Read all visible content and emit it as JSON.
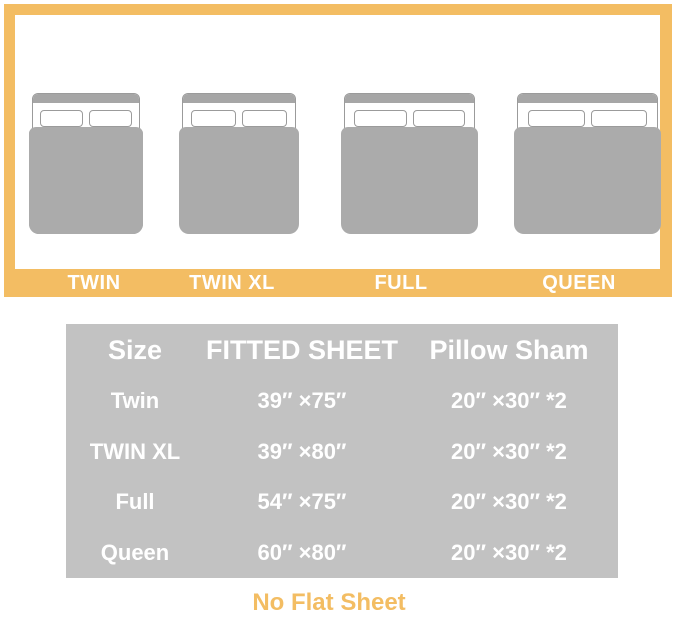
{
  "colors": {
    "accent_orange": "#F3BD63",
    "table_background_gray": "#C2C2C2",
    "mattress_gray": "#ABABAB",
    "headboard_gray": "#A6A6A6",
    "outline_gray": "#9B9B9B",
    "text_white": "#FFFFFF"
  },
  "beds": [
    {
      "label": "TWIN"
    },
    {
      "label": "TWIN XL"
    },
    {
      "label": "FULL"
    },
    {
      "label": "QUEEN"
    }
  ],
  "table": {
    "headers": [
      "Size",
      "FITTED SHEET",
      "Pillow Sham"
    ],
    "rows": [
      {
        "size": "Twin",
        "fitted_sheet": "39″ ×75″",
        "pillow_sham": "20″ ×30″ *2"
      },
      {
        "size": "TWIN XL",
        "fitted_sheet": "39″ ×80″",
        "pillow_sham": "20″ ×30″ *2"
      },
      {
        "size": "Full",
        "fitted_sheet": "54″ ×75″",
        "pillow_sham": "20″ ×30″ *2"
      },
      {
        "size": "Queen",
        "fitted_sheet": "60″ ×80″",
        "pillow_sham": "20″ ×30″ *2"
      }
    ]
  },
  "footnote": "No Flat Sheet",
  "chart_data": {
    "type": "table",
    "columns": [
      "Size",
      "FITTED SHEET",
      "Pillow Sham"
    ],
    "rows": [
      [
        "Twin",
        "39″ ×75″",
        "20″ ×30″ *2"
      ],
      [
        "TWIN XL",
        "39″ ×80″",
        "20″ ×30″ *2"
      ],
      [
        "Full",
        "54″ ×75″",
        "20″ ×30″ *2"
      ],
      [
        "Queen",
        "60″ ×80″",
        "20″ ×30″ *2"
      ]
    ]
  }
}
